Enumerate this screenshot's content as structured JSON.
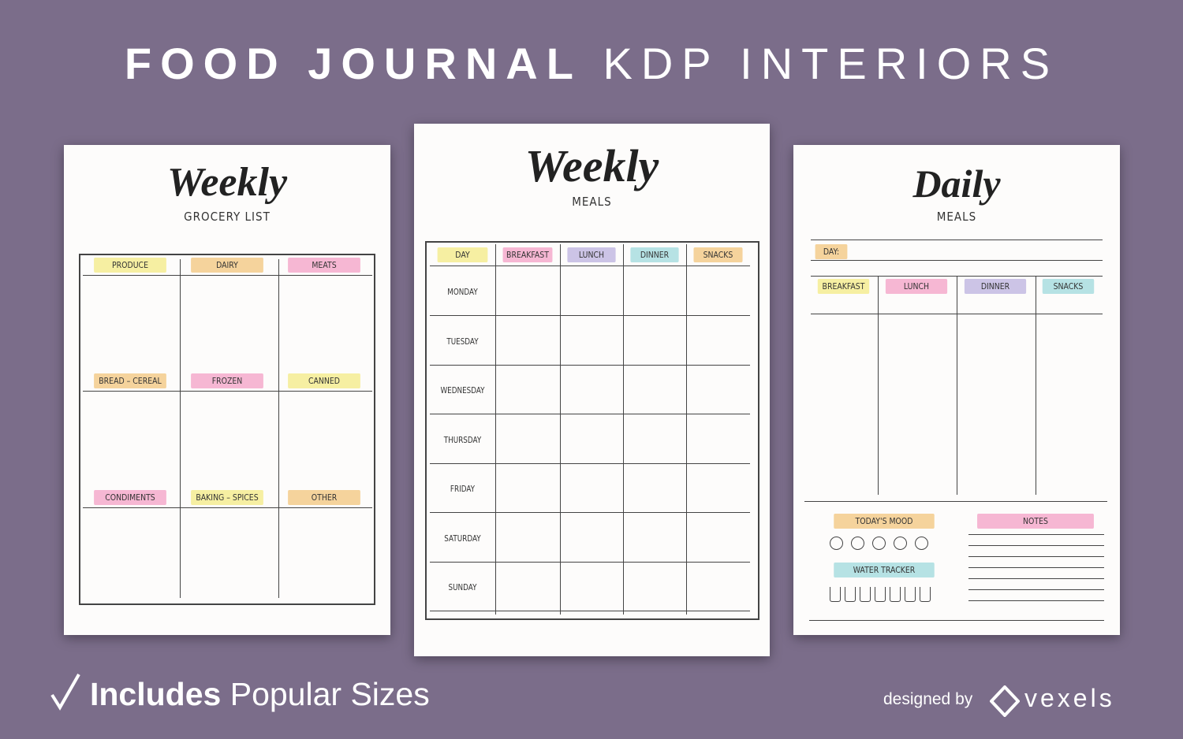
{
  "header": {
    "title_bold": "FOOD JOURNAL",
    "title_light": "KDP INTERIORS"
  },
  "pages": [
    {
      "title": "Weekly",
      "subtitle": "GROCERY LIST",
      "sections": [
        "PRODUCE",
        "DAIRY",
        "MEATS",
        "BREAD – CEREAL",
        "FROZEN",
        "CANNED",
        "CONDIMENTS",
        "BAKING – SPICES",
        "OTHER"
      ]
    },
    {
      "title": "Weekly",
      "subtitle": "MEALS",
      "headers": [
        "DAY",
        "BREAKFAST",
        "LUNCH",
        "DINNER",
        "SNACKS"
      ],
      "days": [
        "MONDAY",
        "TUESDAY",
        "WEDNESDAY",
        "THURSDAY",
        "FRIDAY",
        "SATURDAY",
        "SUNDAY"
      ]
    },
    {
      "title": "Daily",
      "subtitle": "MEALS",
      "day_label": "DAY:",
      "meals": [
        "BREAKFAST",
        "LUNCH",
        "DINNER",
        "SNACKS"
      ],
      "mood_label": "TODAY'S MOOD",
      "water_label": "WATER TRACKER",
      "notes_label": "NOTES"
    }
  ],
  "footer": {
    "includes": "Includes",
    "sizes": "Popular Sizes",
    "designed_by": "designed by",
    "brand": "vexels"
  }
}
